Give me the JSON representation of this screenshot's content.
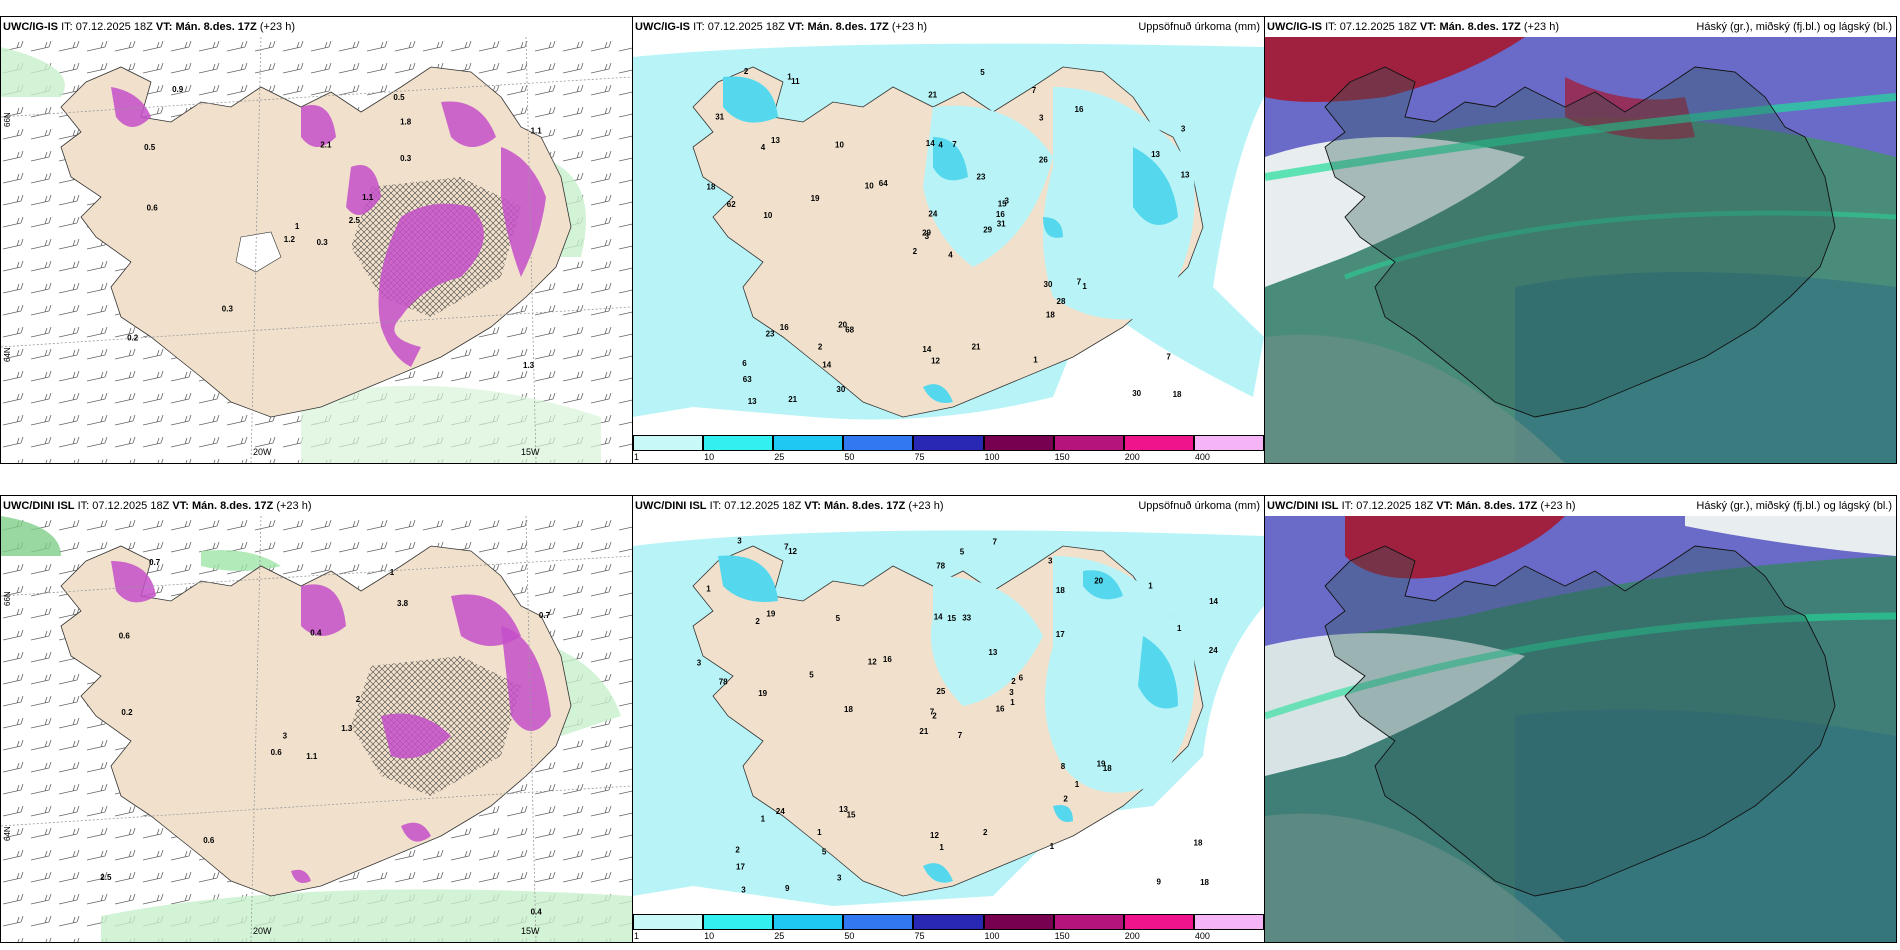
{
  "rows": [
    {
      "model": "UWC/IG-IS",
      "it_label": "IT:",
      "it_value": "07.12.2025 18Z",
      "vt_label": "VT:",
      "vt_value": "Mán. 8.des. 17Z",
      "lead": "(+23 h)",
      "wind_labels": [
        "0.3",
        "0.5",
        "1",
        "0.2",
        "1.1",
        "0.3",
        "0.5",
        "2.1",
        "1.8",
        "2.5",
        "0.9",
        "1.3",
        "0.6",
        "1.1",
        "1.2",
        "0.3"
      ],
      "precip_values": [
        "4",
        "4",
        "3",
        "6",
        "15",
        "68",
        "7",
        "7",
        "3",
        "29",
        "11",
        "18",
        "10",
        "3",
        "2",
        "26",
        "21",
        "14",
        "23",
        "16",
        "64",
        "63",
        "14",
        "4",
        "3",
        "1",
        "13",
        "21",
        "62",
        "30",
        "13",
        "29",
        "14",
        "24",
        "10",
        "16",
        "20",
        "30",
        "7",
        "7",
        "5",
        "10",
        "19",
        "18",
        "30",
        "18",
        "16",
        "13",
        "12",
        "31",
        "23",
        "13",
        "31",
        "28",
        "1",
        "2",
        "1",
        "2",
        "21"
      ],
      "lon_labels": [
        "20W",
        "15W"
      ],
      "lat_labels": [
        "66N",
        "64N"
      ]
    },
    {
      "model": "UWC/DINI ISL",
      "it_label": "IT:",
      "it_value": "07.12.2025 18Z",
      "vt_label": "VT:",
      "vt_value": "Mán. 8.des. 17Z",
      "lead": "(+23 h)",
      "wind_labels": [
        "1.1",
        "0.6",
        "3",
        "2.5",
        "2",
        "0.6",
        "1",
        "0.4",
        "3.8",
        "1.3",
        "0.7",
        "0.4",
        "0.2",
        "0.7",
        "0.6"
      ],
      "precip_values": [
        "7",
        "2",
        "2",
        "2",
        "2",
        "15",
        "3",
        "33",
        "18",
        "16",
        "12",
        "18",
        "19",
        "14",
        "21",
        "17",
        "9",
        "14",
        "13",
        "24",
        "16",
        "17",
        "5",
        "15",
        "6",
        "18",
        "19",
        "78",
        "78",
        "8",
        "24",
        "7",
        "12",
        "25",
        "5",
        "20",
        "13",
        "9",
        "18",
        "19",
        "7",
        "12",
        "5",
        "2",
        "3",
        "3",
        "3",
        "3",
        "1",
        "1",
        "1",
        "1",
        "1",
        "1",
        "1",
        "1",
        "7",
        "3",
        "2",
        "1",
        "5",
        "18"
      ],
      "lon_labels": [
        "20W",
        "15W"
      ],
      "lat_labels": [
        "66N",
        "64N"
      ]
    }
  ],
  "precip_title": "Uppsöfnuð úrkoma (mm)",
  "cloud_title": "Háský (gr.), miðský (fj.bl.) og lágský (bl.)",
  "legend_ticks": [
    "1",
    "10",
    "25",
    "50",
    "75",
    "100",
    "150",
    "200",
    "400"
  ],
  "legend_colors": [
    "#c8f8f8",
    "#33f0f0",
    "#1ec8f0",
    "#3278f0",
    "#2828b4",
    "#780050",
    "#b4147c",
    "#f0148c",
    "#f5b4f5"
  ],
  "colors": {
    "land": "#f1e1cc",
    "precip_light": "#b8f4f7",
    "precip_mid": "#55d8ee",
    "snow": "#c44fc8",
    "rain_green": "#9fe6a8"
  }
}
